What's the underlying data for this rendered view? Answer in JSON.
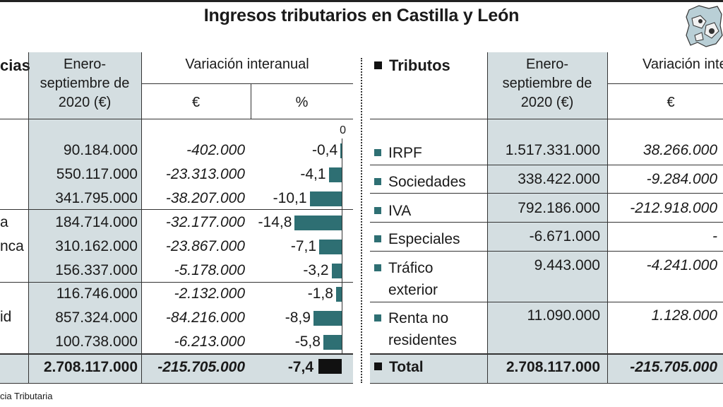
{
  "title": "Ingresos tributarios en Castilla y León",
  "logo_icon": "castilla-y-leon-map-icon",
  "left_table": {
    "col_region": "cias",
    "col_period": "Enero-septiembre de 2020 (€)",
    "col_variation": "Variación interanual",
    "sub_eur": "€",
    "sub_pct": "%",
    "zero_label": "0",
    "group_labels": [
      "a",
      "nca",
      "id"
    ],
    "rows": [
      {
        "amount": "90.184.000",
        "var_eur": "-402.000",
        "var_pct": "-0,4",
        "pct": -0.4
      },
      {
        "amount": "550.117.000",
        "var_eur": "-23.313.000",
        "var_pct": "-4,1",
        "pct": -4.1
      },
      {
        "amount": "341.795.000",
        "var_eur": "-38.207.000",
        "var_pct": "-10,1",
        "pct": -10.1
      },
      {
        "amount": "184.714.000",
        "var_eur": "-32.177.000",
        "var_pct": "-14,8",
        "pct": -14.8
      },
      {
        "amount": "310.162.000",
        "var_eur": "-23.867.000",
        "var_pct": "-7,1",
        "pct": -7.1
      },
      {
        "amount": "156.337.000",
        "var_eur": "-5.178.000",
        "var_pct": "-3,2",
        "pct": -3.2
      },
      {
        "amount": "116.746.000",
        "var_eur": "-2.132.000",
        "var_pct": "-1,8",
        "pct": -1.8
      },
      {
        "amount": "857.324.000",
        "var_eur": "-84.216.000",
        "var_pct": "-8,9",
        "pct": -8.9
      },
      {
        "amount": "100.738.000",
        "var_eur": "-6.213.000",
        "var_pct": "-5,8",
        "pct": -5.8
      }
    ],
    "total": {
      "amount": "2.708.117.000",
      "var_eur": "-215.705.000",
      "var_pct": "-7,4",
      "pct": -7.4
    }
  },
  "right_table": {
    "col_tax": "Tributos",
    "col_period": "Enero-septiembre de 2020 (€)",
    "col_variation": "Variación inte",
    "sub_eur": "€",
    "rows": [
      {
        "label1": "IRPF",
        "label2": "",
        "amount": "1.517.331.000",
        "var_eur": "38.266.000"
      },
      {
        "label1": "Sociedades",
        "label2": "",
        "amount": "338.422.000",
        "var_eur": "-9.284.000"
      },
      {
        "label1": "IVA",
        "label2": "",
        "amount": "792.186.000",
        "var_eur": "-212.918.000"
      },
      {
        "label1": "Especiales",
        "label2": "",
        "amount": "-6.671.000",
        "var_eur": "-"
      },
      {
        "label1": "Tráfico",
        "label2": "exterior",
        "amount": "9.443.000",
        "var_eur": "-4.241.000"
      },
      {
        "label1": "Renta no",
        "label2": "residentes",
        "amount": "11.090.000",
        "var_eur": "1.128.000"
      }
    ],
    "total": {
      "label": "Total",
      "amount": "2.708.117.000",
      "var_eur": "-215.705.000"
    }
  },
  "source": "cia Tributaria",
  "colors": {
    "bar": "#2e6f73",
    "shade": "#d4dee1",
    "total_bar": "#111111"
  }
}
